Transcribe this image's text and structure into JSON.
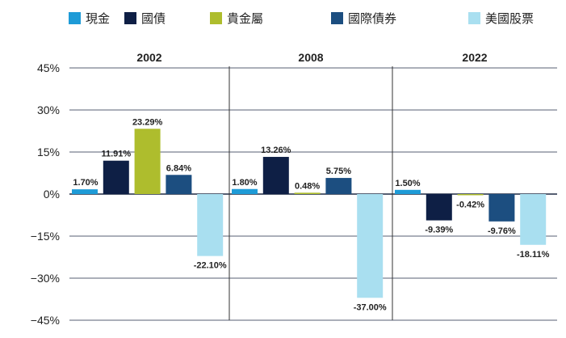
{
  "colors": {
    "background": "#ffffff",
    "gridline": "#1f2a44",
    "divider": "#333333",
    "text": "#222222"
  },
  "chart_data": {
    "type": "bar",
    "title": "",
    "xlabel": "",
    "ylabel": "",
    "ylim": [
      -45,
      45
    ],
    "yticks": [
      45,
      30,
      15,
      0,
      -15,
      -30,
      -45
    ],
    "ytick_labels": [
      "45%",
      "30%",
      "15%",
      "0%",
      "−15%",
      "−30%",
      "−45%"
    ],
    "grid": true,
    "legend_position": "top",
    "groups": [
      "2002",
      "2008",
      "2022"
    ],
    "series": [
      {
        "name": "現金",
        "color": "#1e9bd7",
        "values": [
          1.7,
          1.8,
          1.5
        ],
        "labels": [
          "1.70%",
          "1.80%",
          "1.50%"
        ]
      },
      {
        "name": "國債",
        "color": "#0e1f45",
        "values": [
          11.91,
          13.26,
          -9.39
        ],
        "labels": [
          "11.91%",
          "13.26%",
          "-9.39%"
        ]
      },
      {
        "name": "貴金屬",
        "color": "#aebd2d",
        "values": [
          23.29,
          0.48,
          -0.42
        ],
        "labels": [
          "23.29%",
          "0.48%",
          "-0.42%"
        ]
      },
      {
        "name": "國際債券",
        "color": "#1c4e80",
        "values": [
          6.84,
          5.75,
          -9.76
        ],
        "labels": [
          "6.84%",
          "5.75%",
          "-9.76%"
        ]
      },
      {
        "name": "美國股票",
        "color": "#a9dff0",
        "values": [
          -22.1,
          -37.0,
          -18.11
        ],
        "labels": [
          "-22.10%",
          "-37.00%",
          "-18.11%"
        ]
      }
    ]
  }
}
